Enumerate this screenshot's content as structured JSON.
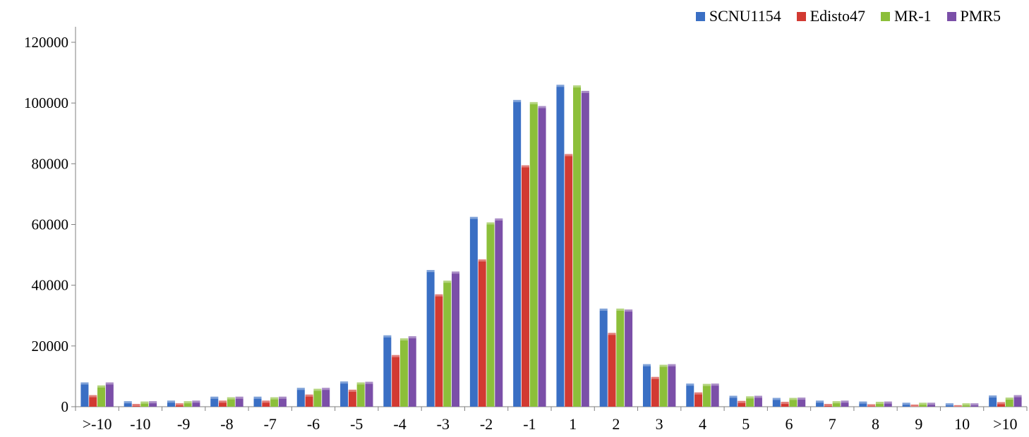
{
  "chart_data": {
    "type": "bar",
    "title": "",
    "xlabel": "",
    "ylabel": "",
    "ylim": [
      0,
      120000
    ],
    "yticks": [
      0,
      20000,
      40000,
      60000,
      80000,
      100000,
      120000
    ],
    "ytick_labels": [
      "0",
      "20000",
      "40000",
      "60000",
      "80000",
      "100000",
      "120000"
    ],
    "grid": false,
    "legend_position": "top-right",
    "categories": [
      ">-10",
      "-10",
      "-9",
      "-8",
      "-7",
      "-6",
      "-5",
      "-4",
      "-3",
      "-2",
      "-1",
      "1",
      "2",
      "3",
      "4",
      "5",
      "6",
      "7",
      "8",
      "9",
      "10",
      ">10"
    ],
    "series": [
      {
        "name": "SCNU1154",
        "color": "#3a6fc4",
        "values": [
          8000,
          1800,
          2000,
          3300,
          3300,
          6200,
          8300,
          23500,
          45000,
          62500,
          101000,
          106000,
          32300,
          14000,
          7600,
          3600,
          2900,
          2000,
          1700,
          1300,
          1100,
          3700
        ]
      },
      {
        "name": "Edisto47",
        "color": "#d23a32",
        "values": [
          3800,
          900,
          1100,
          2000,
          2000,
          4000,
          5600,
          17000,
          37000,
          48500,
          79500,
          83200,
          24300,
          9800,
          4700,
          1900,
          1600,
          900,
          800,
          700,
          500,
          1500
        ]
      },
      {
        "name": "MR-1",
        "color": "#8cbf3a",
        "values": [
          7000,
          1700,
          1800,
          3100,
          3100,
          5900,
          8000,
          22500,
          41500,
          60700,
          100300,
          105800,
          32300,
          13800,
          7500,
          3400,
          2900,
          1800,
          1600,
          1300,
          1100,
          3000
        ]
      },
      {
        "name": "PMR5",
        "color": "#7b4fa8",
        "values": [
          8000,
          1800,
          2000,
          3300,
          3300,
          6200,
          8200,
          23200,
          44500,
          62000,
          99000,
          104000,
          32000,
          14000,
          7600,
          3600,
          3000,
          2000,
          1700,
          1300,
          1100,
          3800
        ]
      }
    ]
  }
}
